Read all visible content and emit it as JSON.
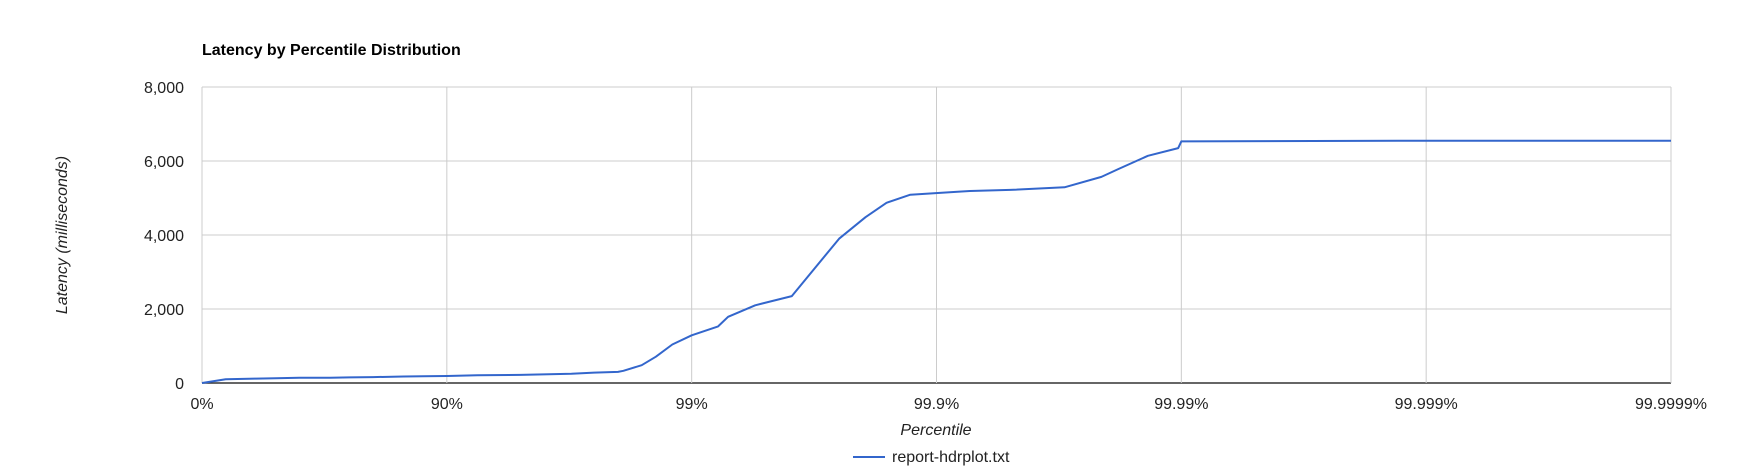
{
  "chart_data": {
    "type": "line",
    "title": "Latency by Percentile Distribution",
    "xlabel": "Percentile",
    "ylabel": "Latency (milliseconds)",
    "x_scale": "inverse-log (1 / (1 - percentile))",
    "x_ticks": [
      "0%",
      "90%",
      "99%",
      "99.9%",
      "99.99%",
      "99.999%",
      "99.9999%"
    ],
    "y_ticks": [
      "0",
      "2,000",
      "4,000",
      "6,000",
      "8,000"
    ],
    "ylim": [
      0,
      8000
    ],
    "grid": true,
    "legend_position": "bottom",
    "series": [
      {
        "name": "report-hdrplot.txt",
        "color": "#3366cc",
        "x": [
          "0%",
          "20%",
          "40%",
          "50%",
          "60%",
          "70%",
          "75%",
          "80%",
          "85%",
          "87.5%",
          "90%",
          "92.5%",
          "95%",
          "96.9%",
          "97.5%",
          "98%",
          "98.1%",
          "98.4%",
          "98.6%",
          "98.8%",
          "99%",
          "99.22%",
          "99.29%",
          "99.45%",
          "99.61%",
          "99.75%",
          "99.805%",
          "99.84%",
          "99.872%",
          "99.918%",
          "99.927%",
          "99.95%",
          "99.97%",
          "99.9788%",
          "99.9819%",
          "99.9863%",
          "99.9897%",
          "99.99%",
          "99.999%",
          "99.9999%"
        ],
        "y": [
          0,
          100,
          120,
          130,
          140,
          140,
          150,
          160,
          175,
          180,
          190,
          210,
          220,
          250,
          280,
          300,
          330,
          480,
          710,
          1040,
          1290,
          1530,
          1790,
          2100,
          2350,
          3900,
          4480,
          4870,
          5090,
          5170,
          5190,
          5220,
          5290,
          5570,
          5780,
          6140,
          6350,
          6530,
          6550,
          6550
        ]
      }
    ]
  }
}
